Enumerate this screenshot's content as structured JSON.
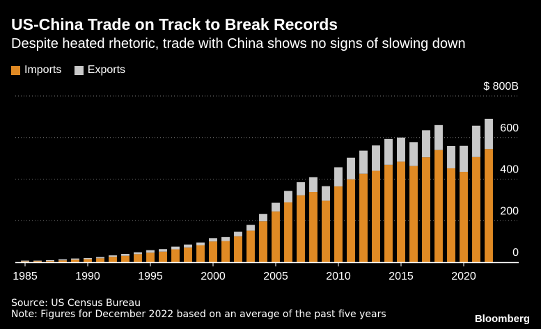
{
  "title": "US-China Trade on Track to Break Records",
  "subtitle": "Despite heated rhetoric, trade with China shows no signs of slowing down",
  "legend": {
    "imports_label": "Imports",
    "exports_label": "Exports"
  },
  "colors": {
    "imports": "#e08a24",
    "exports": "#c9c9c9",
    "gridline": "#7a7a7a",
    "axis": "#ffffff"
  },
  "footer": {
    "source": "Source: US Census Bureau",
    "note": "Note: Figures for December 2022 based on an average of the past five years",
    "brand": "Bloomberg"
  },
  "chart_data": {
    "type": "bar",
    "stacked": true,
    "title": "US-China Trade on Track to Break Records",
    "xlabel": "",
    "ylabel": "",
    "ylim": [
      0,
      800
    ],
    "y_ticks": [
      0,
      200,
      400,
      600,
      800
    ],
    "y_tick_labels": [
      "0",
      "200",
      "400",
      "600",
      "$ 800B"
    ],
    "x_tick_labels": [
      "1985",
      "1990",
      "1995",
      "2000",
      "2005",
      "2010",
      "2015",
      "2020"
    ],
    "categories": [
      1985,
      1986,
      1987,
      1988,
      1989,
      1990,
      1991,
      1992,
      1993,
      1994,
      1995,
      1996,
      1997,
      1998,
      1999,
      2000,
      2001,
      2002,
      2003,
      2004,
      2005,
      2006,
      2007,
      2008,
      2009,
      2010,
      2011,
      2012,
      2013,
      2014,
      2015,
      2016,
      2017,
      2018,
      2019,
      2020,
      2021,
      2022
    ],
    "series": [
      {
        "name": "Imports",
        "values": [
          4,
          5,
          6,
          9,
          12,
          15,
          19,
          26,
          31,
          39,
          46,
          51,
          62,
          71,
          82,
          100,
          102,
          125,
          152,
          197,
          244,
          288,
          322,
          338,
          296,
          365,
          399,
          426,
          440,
          469,
          484,
          463,
          505,
          540,
          452,
          435,
          506,
          545
        ]
      },
      {
        "name": "Exports",
        "values": [
          4,
          3,
          4,
          5,
          6,
          5,
          6,
          7,
          9,
          9,
          12,
          12,
          13,
          14,
          13,
          16,
          19,
          22,
          28,
          35,
          42,
          55,
          63,
          71,
          70,
          92,
          104,
          111,
          122,
          124,
          116,
          115,
          130,
          120,
          107,
          125,
          151,
          145
        ]
      }
    ],
    "grid": true,
    "legend_position": "top-left"
  }
}
